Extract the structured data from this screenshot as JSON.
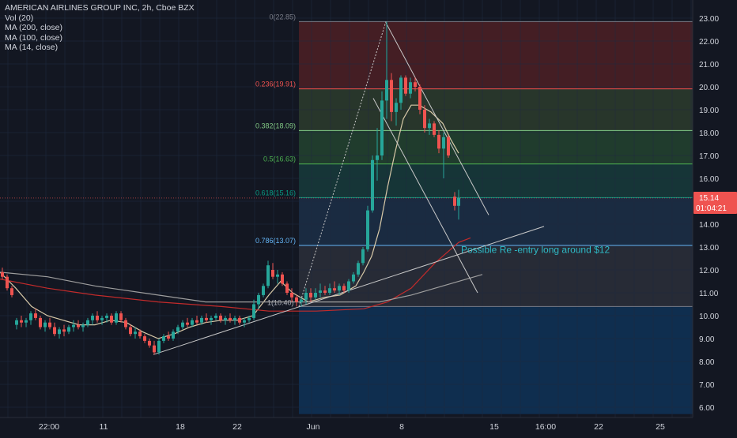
{
  "legend": {
    "title": "AMERICAN AIRLINES GROUP INC, 2h, Cboe BZX",
    "vol": "Vol (20)",
    "ma200": "MA (200, close)",
    "ma100": "MA (100, close)",
    "ma14": "MA (14, close)"
  },
  "price_tag": {
    "value": "15.14",
    "countdown": "01:04:21",
    "color": "#ef5350"
  },
  "colors": {
    "background": "#131722",
    "up": "#26a69a",
    "down": "#ef5350",
    "grid": "#1f2a3f",
    "axis_text": "#d1d4dc",
    "ma14": "#d8c9a8",
    "ma100": "#c42b2b",
    "ma200": "#9e9e9e",
    "trend": "#c9c9c9",
    "annotation": "#2ebbc7"
  },
  "chart_data": {
    "type": "candlestick",
    "y_axis": {
      "min": 5.7,
      "max": 23.3,
      "ticks": [
        6,
        7,
        8,
        9,
        10,
        11,
        12,
        13,
        14,
        15,
        16,
        17,
        18,
        19,
        20,
        21,
        22,
        23
      ]
    },
    "x_axis": {
      "min": 0,
      "max": 932,
      "tick_labels": [
        {
          "x": 62,
          "label": "22:00"
        },
        {
          "x": 131,
          "label": "11"
        },
        {
          "x": 228,
          "label": "18"
        },
        {
          "x": 300,
          "label": "22"
        },
        {
          "x": 396,
          "label": "Jun"
        },
        {
          "x": 508,
          "label": "8"
        },
        {
          "x": 625,
          "label": "15"
        },
        {
          "x": 690,
          "label": "16:00"
        },
        {
          "x": 757,
          "label": "22"
        },
        {
          "x": 835,
          "label": "25"
        }
      ]
    },
    "fibonacci": {
      "x_start": 378,
      "levels": [
        {
          "ratio": "0",
          "price": 22.85,
          "label": "0(22.85)",
          "line": "#787b86",
          "fill": "#4a1f25"
        },
        {
          "ratio": "0.236",
          "price": 19.91,
          "label": "0.236(19.91)",
          "line": "#ef5350",
          "fill": "#2b3a2c"
        },
        {
          "ratio": "0.382",
          "price": 18.09,
          "label": "0.382(18.09)",
          "line": "#81c784",
          "fill": "#22402f"
        },
        {
          "ratio": "0.5",
          "price": 16.63,
          "label": "0.5(16.63)",
          "line": "#4caf50",
          "fill": "#17393a"
        },
        {
          "ratio": "0.618",
          "price": 15.16,
          "label": "0.618(15.16)",
          "line": "#089981",
          "fill": "#1c2d45"
        },
        {
          "ratio": "0.786",
          "price": 13.07,
          "label": "0.786(13.07)",
          "line": "#64b5f6",
          "fill": "#2a2e39"
        },
        {
          "ratio": "1",
          "price": 10.4,
          "label": "1(10.40)",
          "line": "#787b86",
          "fill": "#0f3154"
        }
      ],
      "bottom_price": 5.7
    },
    "candles": [
      {
        "x": 3,
        "o": 11.9,
        "h": 12.1,
        "l": 11.6,
        "c": 11.7
      },
      {
        "x": 9,
        "o": 11.7,
        "h": 11.8,
        "l": 11.1,
        "c": 11.2
      },
      {
        "x": 15,
        "o": 11.2,
        "h": 11.3,
        "l": 10.8,
        "c": 10.9
      },
      {
        "x": 21,
        "o": 9.6,
        "h": 9.9,
        "l": 9.4,
        "c": 9.8
      },
      {
        "x": 27,
        "o": 9.8,
        "h": 10.0,
        "l": 9.5,
        "c": 9.7
      },
      {
        "x": 33,
        "o": 9.7,
        "h": 9.9,
        "l": 9.5,
        "c": 9.8
      },
      {
        "x": 39,
        "o": 9.8,
        "h": 10.2,
        "l": 9.6,
        "c": 10.1
      },
      {
        "x": 45,
        "o": 10.1,
        "h": 10.3,
        "l": 9.8,
        "c": 9.9
      },
      {
        "x": 51,
        "o": 9.9,
        "h": 10.0,
        "l": 9.4,
        "c": 9.5
      },
      {
        "x": 57,
        "o": 9.5,
        "h": 9.8,
        "l": 9.3,
        "c": 9.7
      },
      {
        "x": 63,
        "o": 9.7,
        "h": 9.9,
        "l": 9.4,
        "c": 9.5
      },
      {
        "x": 69,
        "o": 9.5,
        "h": 9.7,
        "l": 9.1,
        "c": 9.2
      },
      {
        "x": 75,
        "o": 9.2,
        "h": 9.5,
        "l": 9.0,
        "c": 9.4
      },
      {
        "x": 81,
        "o": 9.4,
        "h": 9.6,
        "l": 9.1,
        "c": 9.3
      },
      {
        "x": 87,
        "o": 9.3,
        "h": 9.6,
        "l": 9.2,
        "c": 9.5
      },
      {
        "x": 93,
        "o": 9.5,
        "h": 9.8,
        "l": 9.3,
        "c": 9.6
      },
      {
        "x": 99,
        "o": 9.6,
        "h": 9.8,
        "l": 9.4,
        "c": 9.5
      },
      {
        "x": 105,
        "o": 9.5,
        "h": 9.7,
        "l": 9.3,
        "c": 9.6
      },
      {
        "x": 111,
        "o": 9.6,
        "h": 9.9,
        "l": 9.5,
        "c": 9.8
      },
      {
        "x": 117,
        "o": 9.8,
        "h": 10.1,
        "l": 9.6,
        "c": 10.0
      },
      {
        "x": 123,
        "o": 10.0,
        "h": 10.2,
        "l": 9.7,
        "c": 9.8
      },
      {
        "x": 129,
        "o": 9.8,
        "h": 10.0,
        "l": 9.6,
        "c": 9.9
      },
      {
        "x": 135,
        "o": 9.9,
        "h": 10.1,
        "l": 9.7,
        "c": 10.0
      },
      {
        "x": 141,
        "o": 10.0,
        "h": 10.1,
        "l": 9.6,
        "c": 9.7
      },
      {
        "x": 147,
        "o": 9.7,
        "h": 10.2,
        "l": 9.6,
        "c": 10.1
      },
      {
        "x": 153,
        "o": 10.1,
        "h": 10.2,
        "l": 9.7,
        "c": 9.8
      },
      {
        "x": 159,
        "o": 9.8,
        "h": 9.9,
        "l": 9.4,
        "c": 9.5
      },
      {
        "x": 165,
        "o": 9.5,
        "h": 9.6,
        "l": 9.1,
        "c": 9.2
      },
      {
        "x": 171,
        "o": 9.2,
        "h": 9.5,
        "l": 9.0,
        "c": 9.3
      },
      {
        "x": 177,
        "o": 9.3,
        "h": 9.4,
        "l": 9.0,
        "c": 9.1
      },
      {
        "x": 183,
        "o": 9.1,
        "h": 9.2,
        "l": 8.8,
        "c": 8.9
      },
      {
        "x": 189,
        "o": 8.9,
        "h": 9.0,
        "l": 8.6,
        "c": 8.7
      },
      {
        "x": 195,
        "o": 8.7,
        "h": 8.9,
        "l": 8.3,
        "c": 8.4
      },
      {
        "x": 201,
        "o": 8.4,
        "h": 9.0,
        "l": 8.3,
        "c": 8.9
      },
      {
        "x": 207,
        "o": 8.9,
        "h": 9.2,
        "l": 8.8,
        "c": 9.1
      },
      {
        "x": 213,
        "o": 9.1,
        "h": 9.3,
        "l": 8.9,
        "c": 9.0
      },
      {
        "x": 219,
        "o": 9.0,
        "h": 9.4,
        "l": 8.9,
        "c": 9.3
      },
      {
        "x": 225,
        "o": 9.3,
        "h": 9.6,
        "l": 9.2,
        "c": 9.5
      },
      {
        "x": 231,
        "o": 9.5,
        "h": 9.8,
        "l": 9.4,
        "c": 9.7
      },
      {
        "x": 237,
        "o": 9.7,
        "h": 9.9,
        "l": 9.5,
        "c": 9.6
      },
      {
        "x": 243,
        "o": 9.6,
        "h": 9.9,
        "l": 9.5,
        "c": 9.8
      },
      {
        "x": 249,
        "o": 9.8,
        "h": 10.0,
        "l": 9.6,
        "c": 9.7
      },
      {
        "x": 255,
        "o": 9.7,
        "h": 10.0,
        "l": 9.6,
        "c": 9.9
      },
      {
        "x": 261,
        "o": 9.9,
        "h": 10.1,
        "l": 9.7,
        "c": 9.8
      },
      {
        "x": 267,
        "o": 9.8,
        "h": 10.0,
        "l": 9.6,
        "c": 9.9
      },
      {
        "x": 273,
        "o": 9.9,
        "h": 10.1,
        "l": 9.8,
        "c": 10.0
      },
      {
        "x": 279,
        "o": 10.0,
        "h": 10.1,
        "l": 9.7,
        "c": 9.8
      },
      {
        "x": 285,
        "o": 9.8,
        "h": 10.0,
        "l": 9.6,
        "c": 9.9
      },
      {
        "x": 291,
        "o": 9.9,
        "h": 10.1,
        "l": 9.7,
        "c": 9.8
      },
      {
        "x": 297,
        "o": 9.8,
        "h": 10.0,
        "l": 9.6,
        "c": 9.9
      },
      {
        "x": 303,
        "o": 9.9,
        "h": 10.0,
        "l": 9.6,
        "c": 9.7
      },
      {
        "x": 309,
        "o": 9.7,
        "h": 9.9,
        "l": 9.5,
        "c": 9.8
      },
      {
        "x": 315,
        "o": 9.8,
        "h": 10.0,
        "l": 9.7,
        "c": 9.9
      },
      {
        "x": 321,
        "o": 9.9,
        "h": 10.7,
        "l": 9.8,
        "c": 10.5
      },
      {
        "x": 327,
        "o": 10.5,
        "h": 11.0,
        "l": 10.3,
        "c": 10.9
      },
      {
        "x": 333,
        "o": 10.9,
        "h": 11.4,
        "l": 10.8,
        "c": 11.3
      },
      {
        "x": 339,
        "o": 11.3,
        "h": 12.4,
        "l": 11.2,
        "c": 12.2
      },
      {
        "x": 345,
        "o": 12.0,
        "h": 12.3,
        "l": 11.6,
        "c": 11.7
      },
      {
        "x": 351,
        "o": 11.7,
        "h": 12.0,
        "l": 11.4,
        "c": 11.8
      },
      {
        "x": 357,
        "o": 11.8,
        "h": 11.9,
        "l": 11.3,
        "c": 11.4
      },
      {
        "x": 363,
        "o": 11.4,
        "h": 11.5,
        "l": 10.9,
        "c": 11.0
      },
      {
        "x": 369,
        "o": 11.0,
        "h": 11.2,
        "l": 10.6,
        "c": 10.8
      },
      {
        "x": 375,
        "o": 10.8,
        "h": 10.9,
        "l": 10.4,
        "c": 10.6
      },
      {
        "x": 381,
        "o": 10.6,
        "h": 10.8,
        "l": 10.4,
        "c": 10.7
      },
      {
        "x": 387,
        "o": 10.7,
        "h": 11.2,
        "l": 10.5,
        "c": 11.0
      },
      {
        "x": 393,
        "o": 11.0,
        "h": 11.2,
        "l": 10.6,
        "c": 10.8
      },
      {
        "x": 399,
        "o": 10.8,
        "h": 11.2,
        "l": 10.7,
        "c": 11.0
      },
      {
        "x": 405,
        "o": 11.0,
        "h": 11.4,
        "l": 10.8,
        "c": 11.1
      },
      {
        "x": 411,
        "o": 11.1,
        "h": 11.3,
        "l": 10.9,
        "c": 11.0
      },
      {
        "x": 417,
        "o": 11.0,
        "h": 11.4,
        "l": 10.9,
        "c": 11.2
      },
      {
        "x": 423,
        "o": 11.2,
        "h": 11.5,
        "l": 11.0,
        "c": 11.1
      },
      {
        "x": 429,
        "o": 11.1,
        "h": 11.4,
        "l": 10.9,
        "c": 11.3
      },
      {
        "x": 435,
        "o": 11.3,
        "h": 11.4,
        "l": 11.0,
        "c": 11.1
      },
      {
        "x": 441,
        "o": 11.1,
        "h": 11.6,
        "l": 11.0,
        "c": 11.5
      },
      {
        "x": 447,
        "o": 11.5,
        "h": 11.9,
        "l": 11.4,
        "c": 11.8
      },
      {
        "x": 453,
        "o": 11.8,
        "h": 12.4,
        "l": 11.7,
        "c": 12.3
      },
      {
        "x": 459,
        "o": 12.3,
        "h": 13.0,
        "l": 12.2,
        "c": 12.9
      },
      {
        "x": 465,
        "o": 12.9,
        "h": 14.8,
        "l": 12.8,
        "c": 14.6
      },
      {
        "x": 471,
        "o": 14.6,
        "h": 17.0,
        "l": 14.5,
        "c": 16.8
      },
      {
        "x": 477,
        "o": 16.8,
        "h": 18.2,
        "l": 15.9,
        "c": 17.0
      },
      {
        "x": 483,
        "o": 17.0,
        "h": 19.8,
        "l": 16.8,
        "c": 19.4
      },
      {
        "x": 489,
        "o": 19.4,
        "h": 22.85,
        "l": 18.6,
        "c": 20.3
      },
      {
        "x": 495,
        "o": 20.3,
        "h": 20.6,
        "l": 18.5,
        "c": 18.9
      },
      {
        "x": 501,
        "o": 18.9,
        "h": 19.5,
        "l": 18.3,
        "c": 19.3
      },
      {
        "x": 507,
        "o": 19.3,
        "h": 20.5,
        "l": 19.0,
        "c": 20.4
      },
      {
        "x": 513,
        "o": 20.4,
        "h": 20.5,
        "l": 19.6,
        "c": 19.7
      },
      {
        "x": 519,
        "o": 19.7,
        "h": 20.4,
        "l": 19.5,
        "c": 20.2
      },
      {
        "x": 525,
        "o": 20.2,
        "h": 20.4,
        "l": 19.8,
        "c": 20.0
      },
      {
        "x": 531,
        "o": 20.0,
        "h": 20.1,
        "l": 18.8,
        "c": 19.0
      },
      {
        "x": 537,
        "o": 19.0,
        "h": 19.2,
        "l": 18.0,
        "c": 18.2
      },
      {
        "x": 543,
        "o": 18.2,
        "h": 18.6,
        "l": 17.9,
        "c": 18.4
      },
      {
        "x": 549,
        "o": 18.4,
        "h": 18.5,
        "l": 17.8,
        "c": 17.9
      },
      {
        "x": 555,
        "o": 17.9,
        "h": 18.1,
        "l": 17.1,
        "c": 17.3
      },
      {
        "x": 561,
        "o": 17.3,
        "h": 18.0,
        "l": 16.0,
        "c": 17.8
      },
      {
        "x": 567,
        "o": 17.8,
        "h": 17.9,
        "l": 16.9,
        "c": 17.0
      },
      {
        "x": 575,
        "o": 15.2,
        "h": 15.4,
        "l": 14.6,
        "c": 14.8
      },
      {
        "x": 580,
        "o": 14.8,
        "h": 15.5,
        "l": 14.2,
        "c": 15.14
      }
    ],
    "moving_averages": [
      {
        "name": "MA (14, close)",
        "color": "#d8c9a8",
        "points": [
          [
            0,
            11.9
          ],
          [
            20,
            11.2
          ],
          [
            40,
            10.4
          ],
          [
            60,
            10.0
          ],
          [
            80,
            9.8
          ],
          [
            100,
            9.6
          ],
          [
            120,
            9.6
          ],
          [
            140,
            9.8
          ],
          [
            160,
            9.7
          ],
          [
            180,
            9.3
          ],
          [
            200,
            9.0
          ],
          [
            220,
            9.2
          ],
          [
            240,
            9.5
          ],
          [
            260,
            9.7
          ],
          [
            280,
            9.8
          ],
          [
            300,
            9.8
          ],
          [
            320,
            10.0
          ],
          [
            340,
            10.9
          ],
          [
            355,
            11.5
          ],
          [
            370,
            11.0
          ],
          [
            390,
            10.6
          ],
          [
            410,
            10.8
          ],
          [
            430,
            10.9
          ],
          [
            450,
            11.3
          ],
          [
            460,
            11.9
          ],
          [
            470,
            12.6
          ],
          [
            480,
            13.8
          ],
          [
            490,
            15.6
          ],
          [
            500,
            17.2
          ],
          [
            510,
            18.6
          ],
          [
            520,
            19.2
          ],
          [
            530,
            19.2
          ],
          [
            545,
            18.9
          ],
          [
            560,
            18.4
          ],
          [
            570,
            17.7
          ],
          [
            580,
            17.1
          ]
        ]
      },
      {
        "name": "MA (100, close)",
        "color": "#c42b2b",
        "points": [
          [
            0,
            11.6
          ],
          [
            60,
            11.2
          ],
          [
            120,
            10.9
          ],
          [
            200,
            10.6
          ],
          [
            280,
            10.4
          ],
          [
            340,
            10.2
          ],
          [
            400,
            10.2
          ],
          [
            460,
            10.3
          ],
          [
            490,
            10.6
          ],
          [
            520,
            11.2
          ],
          [
            550,
            12.3
          ],
          [
            580,
            13.2
          ],
          [
            595,
            13.4
          ]
        ]
      },
      {
        "name": "MA (200, close)",
        "color": "#9e9e9e",
        "points": [
          [
            0,
            11.9
          ],
          [
            60,
            11.7
          ],
          [
            120,
            11.3
          ],
          [
            200,
            10.9
          ],
          [
            260,
            10.6
          ],
          [
            320,
            10.6
          ],
          [
            400,
            10.6
          ],
          [
            480,
            10.6
          ],
          [
            520,
            10.9
          ],
          [
            560,
            11.3
          ],
          [
            610,
            11.8
          ]
        ]
      }
    ],
    "trend_lines": [
      {
        "name": "lower-trend-line",
        "from": [
          194,
          8.3
        ],
        "to": [
          688,
          13.9
        ],
        "dashed": false
      },
      {
        "name": "upper-falling-trend-line",
        "from": [
          488,
          22.8
        ],
        "to": [
          618,
          14.4
        ],
        "dashed": false
      },
      {
        "name": "lower-falling-trend-line",
        "from": [
          472,
          19.5
        ],
        "to": [
          604,
          11.0
        ],
        "dashed": false
      },
      {
        "name": "fib-diagonal",
        "from": [
          378,
          10.4
        ],
        "to": [
          488,
          22.85
        ],
        "dashed": true
      }
    ],
    "annotations": [
      {
        "text": "Possible Re -entry long around $12",
        "x": 583,
        "price": 12.75
      }
    ]
  }
}
